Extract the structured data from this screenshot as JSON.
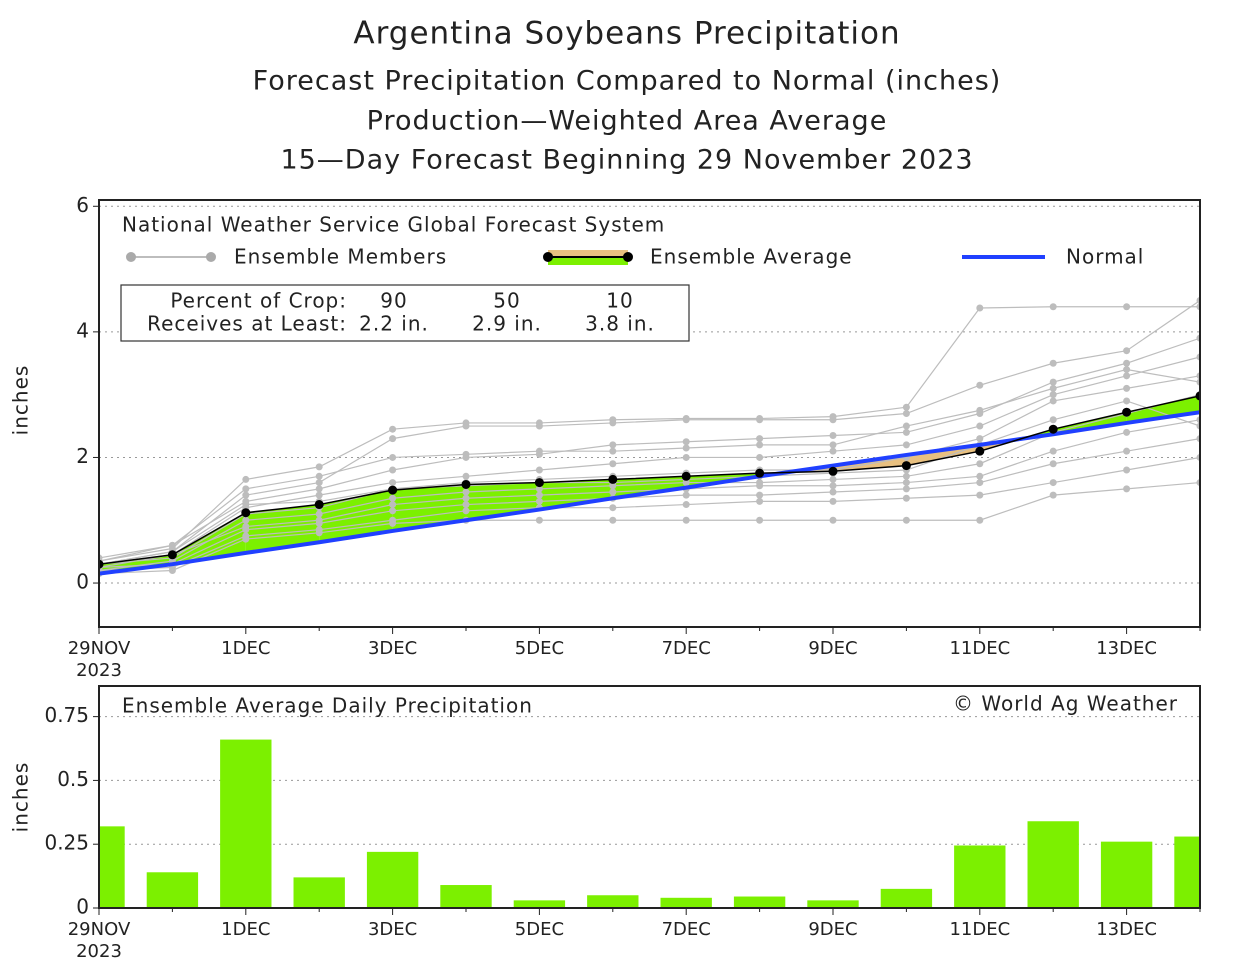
{
  "chart_data": [
    {
      "type": "line",
      "title": "Argentina Soybeans Precipitation",
      "subtitle": [
        "Forecast Precipitation Compared to Normal (inches)",
        "Production—Weighted Area Average",
        "15—Day Forecast Beginning 29 November 2023"
      ],
      "ylabel": "inches",
      "legend_title": "National Weather Service Global Forecast System",
      "crop_table": {
        "rows": [
          [
            "Percent of Crop:",
            "90",
            "50",
            "10"
          ],
          [
            "Receives at Least:",
            "2.2 in.",
            "2.9 in.",
            "3.8 in."
          ]
        ]
      },
      "categories": [
        "29NOV 2023",
        null,
        "1DEC",
        null,
        "3DEC",
        null,
        "5DEC",
        null,
        "7DEC",
        null,
        "9DEC",
        null,
        "11DEC",
        null,
        "13DEC",
        null
      ],
      "members": {
        "name": "Ensemble Members",
        "color": "#bdbdbd",
        "values": [
          [
            0.35,
            0.55,
            1.65,
            1.85,
            2.45,
            2.55,
            2.55,
            2.6,
            2.62,
            2.62,
            2.65,
            2.8,
            4.38,
            4.4,
            4.4,
            4.4
          ],
          [
            0.3,
            0.5,
            1.4,
            1.6,
            2.3,
            2.5,
            2.5,
            2.55,
            2.6,
            2.6,
            2.6,
            2.7,
            3.15,
            3.5,
            3.7,
            4.5
          ],
          [
            0.4,
            0.6,
            1.3,
            1.5,
            1.8,
            2.0,
            2.05,
            2.2,
            2.25,
            2.3,
            2.35,
            2.4,
            2.7,
            3.2,
            3.5,
            3.9
          ],
          [
            0.25,
            0.45,
            1.2,
            1.4,
            1.6,
            1.7,
            1.8,
            1.9,
            2.0,
            2.0,
            2.1,
            2.2,
            2.5,
            3.0,
            3.3,
            3.6
          ],
          [
            0.3,
            0.4,
            1.1,
            1.2,
            1.5,
            1.6,
            1.65,
            1.7,
            1.75,
            1.8,
            1.8,
            2.0,
            2.3,
            2.9,
            3.1,
            3.3
          ],
          [
            0.2,
            0.35,
            1.0,
            1.1,
            1.35,
            1.45,
            1.5,
            1.55,
            1.6,
            1.6,
            1.65,
            1.7,
            1.9,
            2.4,
            2.7,
            3.0
          ],
          [
            0.3,
            0.45,
            0.9,
            1.0,
            1.25,
            1.35,
            1.4,
            1.45,
            1.5,
            1.55,
            1.55,
            1.6,
            1.7,
            2.1,
            2.4,
            2.6
          ],
          [
            0.25,
            0.3,
            0.85,
            0.95,
            1.15,
            1.25,
            1.3,
            1.35,
            1.4,
            1.4,
            1.45,
            1.5,
            1.6,
            1.9,
            2.1,
            2.3
          ],
          [
            0.2,
            0.25,
            0.75,
            0.85,
            1.0,
            1.15,
            1.2,
            1.2,
            1.25,
            1.3,
            1.3,
            1.35,
            1.4,
            1.6,
            1.8,
            2.0
          ],
          [
            0.15,
            0.2,
            0.7,
            0.8,
            0.95,
            1.0,
            1.0,
            1.0,
            1.0,
            1.0,
            1.0,
            1.0,
            1.0,
            1.4,
            1.5,
            1.6
          ],
          [
            0.35,
            0.6,
            1.5,
            1.7,
            2.0,
            2.05,
            2.1,
            2.1,
            2.15,
            2.2,
            2.2,
            2.5,
            2.75,
            3.1,
            3.4,
            3.2
          ],
          [
            0.3,
            0.5,
            1.25,
            1.3,
            1.5,
            1.55,
            1.6,
            1.6,
            1.65,
            1.7,
            1.75,
            1.8,
            2.2,
            2.6,
            2.9,
            2.5
          ]
        ]
      },
      "series": [
        {
          "name": "Ensemble Average",
          "color": "#000000",
          "fill_above": "#7cf000",
          "fill_below": "#e8c080",
          "values": [
            0.3,
            0.45,
            1.12,
            1.25,
            1.48,
            1.57,
            1.6,
            1.65,
            1.7,
            1.75,
            1.78,
            1.87,
            2.1,
            2.45,
            2.72,
            2.98
          ]
        },
        {
          "name": "Normal",
          "color": "#2040ff",
          "values": [
            0.15,
            0.3,
            0.48,
            0.65,
            0.83,
            1.0,
            1.17,
            1.35,
            1.52,
            1.7,
            1.87,
            2.04,
            2.2,
            2.37,
            2.55,
            2.72
          ]
        }
      ],
      "ylim": [
        -0.7,
        6.1
      ],
      "yticks": [
        0,
        2,
        4,
        6
      ],
      "grid": true
    },
    {
      "type": "bar",
      "title": "Ensemble Average Daily Precipitation",
      "credit": "© World Ag Weather",
      "ylabel": "inches",
      "categories": [
        "29NOV 2023",
        null,
        "1DEC",
        null,
        "3DEC",
        null,
        "5DEC",
        null,
        "7DEC",
        null,
        "9DEC",
        null,
        "11DEC",
        null,
        "13DEC",
        null
      ],
      "values": [
        0.32,
        0.14,
        0.66,
        0.12,
        0.22,
        0.09,
        0.03,
        0.05,
        0.04,
        0.045,
        0.03,
        0.075,
        0.245,
        0.34,
        0.26,
        0.28
      ],
      "color": "#7cf000",
      "ylim": [
        0,
        0.87
      ],
      "yticks": [
        0,
        0.25,
        0.5,
        0.75
      ],
      "grid": true
    }
  ]
}
